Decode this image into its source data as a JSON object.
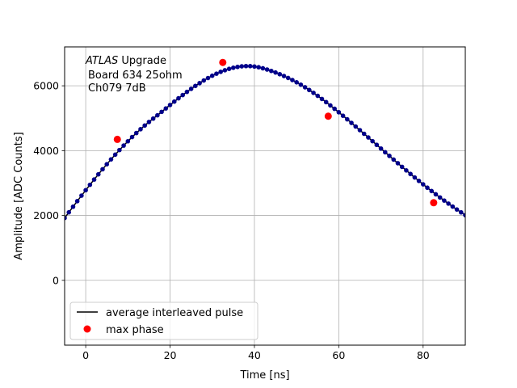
{
  "chart_data": {
    "type": "scatter",
    "xlabel": "Time [ns]",
    "ylabel": "Amplitude [ADC Counts]",
    "xlim": [
      -5,
      90
    ],
    "ylim": [
      -2000,
      7200
    ],
    "xticks": [
      0,
      20,
      40,
      60,
      80
    ],
    "yticks": [
      0,
      2000,
      4000,
      6000
    ],
    "grid": true,
    "legend_position": "lower-left",
    "annotation": {
      "line1_italic": "ATLAS",
      "line1_rest": " Upgrade",
      "line2": "Board 634 25ohm",
      "line3": "Ch079 7dB"
    },
    "series": [
      {
        "name": "average interleaved pulse",
        "color": "#000000",
        "marker_color": "#00008b",
        "x": [
          -5,
          -4,
          -3,
          -2,
          -1,
          0,
          1,
          2,
          3,
          4,
          5,
          6,
          7,
          8,
          9,
          10,
          11,
          12,
          13,
          14,
          15,
          16,
          17,
          18,
          19,
          20,
          21,
          22,
          23,
          24,
          25,
          26,
          27,
          28,
          29,
          30,
          31,
          32,
          33,
          34,
          35,
          36,
          37,
          38,
          39,
          40,
          41,
          42,
          43,
          44,
          45,
          46,
          47,
          48,
          49,
          50,
          51,
          52,
          53,
          54,
          55,
          56,
          57,
          58,
          59,
          60,
          61,
          62,
          63,
          64,
          65,
          66,
          67,
          68,
          69,
          70,
          71,
          72,
          73,
          74,
          75,
          76,
          77,
          78,
          79,
          80,
          81,
          82,
          83,
          84,
          85,
          86,
          87,
          88,
          89,
          90
        ],
        "y": [
          1922,
          2097,
          2270,
          2442,
          2612,
          2780,
          2946,
          3109,
          3269,
          3426,
          3580,
          3730,
          3876,
          4018,
          4156,
          4289,
          4418,
          4542,
          4661,
          4775,
          4884,
          4988,
          5090,
          5196,
          5302,
          5408,
          5512,
          5614,
          5714,
          5812,
          5906,
          5996,
          6082,
          6164,
          6240,
          6310,
          6374,
          6430,
          6480,
          6522,
          6556,
          6582,
          6600,
          6608,
          6606,
          6594,
          6572,
          6540,
          6502,
          6458,
          6410,
          6358,
          6302,
          6242,
          6178,
          6108,
          6034,
          5954,
          5870,
          5782,
          5690,
          5594,
          5496,
          5394,
          5290,
          5184,
          5076,
          4966,
          4856,
          4744,
          4632,
          4520,
          4406,
          4292,
          4178,
          4064,
          3950,
          3838,
          3724,
          3612,
          3500,
          3390,
          3280,
          3172,
          3066,
          2960,
          2856,
          2754,
          2654,
          2556,
          2460,
          2366,
          2274,
          2184,
          2096,
          2010
        ]
      },
      {
        "name": "max phase",
        "color": "#ff0000",
        "x": [
          7.5,
          32.5,
          57.5,
          82.5
        ],
        "y": [
          4348,
          6720,
          5062,
          2393
        ]
      }
    ]
  }
}
